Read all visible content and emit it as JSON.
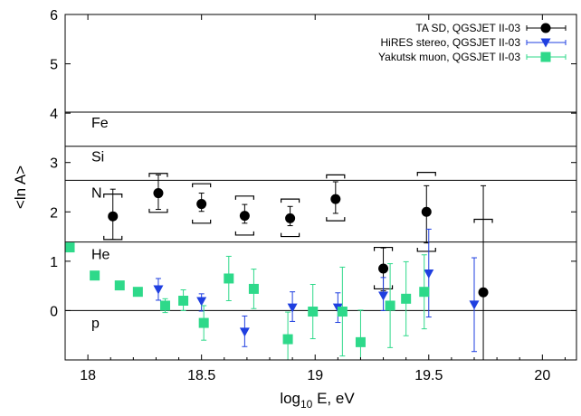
{
  "chart_data": {
    "type": "scatter",
    "xlabel_main": "log",
    "xlabel_sub": "10",
    "xlabel_rest": " E, eV",
    "ylabel": "<ln A>",
    "xlim": [
      17.9,
      20.15
    ],
    "ylim": [
      -1.0,
      6.0
    ],
    "xticks": [
      18,
      18.5,
      19,
      19.5,
      20
    ],
    "xtick_labels": [
      "18",
      "18.5",
      "19",
      "19.5",
      "20"
    ],
    "yticks": [
      0,
      1,
      2,
      3,
      4,
      5,
      6
    ],
    "ytick_labels": [
      "0",
      "1",
      "2",
      "3",
      "4",
      "5",
      "6"
    ],
    "legend_position": "top-right",
    "reference_lines": [
      {
        "label": "Fe",
        "value": 4.02
      },
      {
        "label": "Si",
        "value": 3.33
      },
      {
        "label": "N",
        "value": 2.64
      },
      {
        "label": "He",
        "value": 1.39
      },
      {
        "label": "p",
        "value": 0.0
      }
    ],
    "series": [
      {
        "name": "TA SD, QGSJET II-03",
        "marker": "circle",
        "color": "#000000",
        "points": [
          {
            "x": 18.11,
            "y": 1.91,
            "err_lo": 0.47,
            "err_hi": 0.55,
            "sys_lo": 1.44,
            "sys_hi": 2.36
          },
          {
            "x": 18.31,
            "y": 2.38,
            "err_lo": 0.33,
            "err_hi": 0.37,
            "sys_lo": 1.99,
            "sys_hi": 2.78
          },
          {
            "x": 18.5,
            "y": 2.16,
            "err_lo": 0.15,
            "err_hi": 0.22,
            "sys_lo": 1.77,
            "sys_hi": 2.57
          },
          {
            "x": 18.69,
            "y": 1.92,
            "err_lo": 0.15,
            "err_hi": 0.23,
            "sys_lo": 1.53,
            "sys_hi": 2.32
          },
          {
            "x": 18.89,
            "y": 1.87,
            "err_lo": 0.15,
            "err_hi": 0.24,
            "sys_lo": 1.5,
            "sys_hi": 2.26
          },
          {
            "x": 19.09,
            "y": 2.26,
            "err_lo": 0.29,
            "err_hi": 0.35,
            "sys_lo": 1.82,
            "sys_hi": 2.75
          },
          {
            "x": 19.3,
            "y": 0.85,
            "err_lo": 0.45,
            "err_hi": 0.42,
            "sys_lo": 0.44,
            "sys_hi": 1.28
          },
          {
            "x": 19.49,
            "y": 2.0,
            "err_lo": 0.63,
            "err_hi": 0.53,
            "sys_lo": 1.2,
            "sys_hi": 2.8
          },
          {
            "x": 19.74,
            "y": 0.37,
            "err_lo": 1.37,
            "err_hi": 2.16,
            "sys_lo": null,
            "sys_hi": 1.85
          }
        ]
      },
      {
        "name": "HiRES stereo, QGSJET II-03",
        "marker": "triangle-down",
        "color": "#1f3fe0",
        "points": [
          {
            "x": 18.31,
            "y": 0.43,
            "err_lo": 0.22,
            "err_hi": 0.22
          },
          {
            "x": 18.5,
            "y": 0.19,
            "err_lo": 0.2,
            "err_hi": 0.15
          },
          {
            "x": 18.69,
            "y": -0.43,
            "err_lo": 0.3,
            "err_hi": 0.32
          },
          {
            "x": 18.9,
            "y": 0.06,
            "err_lo": 0.28,
            "err_hi": 0.32
          },
          {
            "x": 19.1,
            "y": 0.06,
            "err_lo": 0.3,
            "err_hi": 0.3
          },
          {
            "x": 19.3,
            "y": 0.3,
            "err_lo": 0.3,
            "err_hi": 0.37
          },
          {
            "x": 19.5,
            "y": 0.75,
            "err_lo": 0.88,
            "err_hi": 0.9
          },
          {
            "x": 19.7,
            "y": 0.12,
            "err_lo": 0.95,
            "err_hi": 0.95
          }
        ]
      },
      {
        "name": "Yakutsk muon, QGSJET II-03",
        "marker": "square",
        "color": "#2ed98a",
        "points": [
          {
            "x": 17.92,
            "y": 1.28,
            "err_lo": 0.05,
            "err_hi": 0.05
          },
          {
            "x": 18.03,
            "y": 0.71,
            "err_lo": 0.05,
            "err_hi": 0.05
          },
          {
            "x": 18.14,
            "y": 0.51,
            "err_lo": 0.05,
            "err_hi": 0.05
          },
          {
            "x": 18.22,
            "y": 0.38,
            "err_lo": 0.06,
            "err_hi": 0.06
          },
          {
            "x": 18.34,
            "y": 0.1,
            "err_lo": 0.14,
            "err_hi": 0.14
          },
          {
            "x": 18.42,
            "y": 0.2,
            "err_lo": 0.2,
            "err_hi": 0.22
          },
          {
            "x": 18.51,
            "y": -0.25,
            "err_lo": 0.35,
            "err_hi": 0.35
          },
          {
            "x": 18.62,
            "y": 0.65,
            "err_lo": 0.45,
            "err_hi": 0.45
          },
          {
            "x": 18.73,
            "y": 0.44,
            "err_lo": 0.4,
            "err_hi": 0.4
          },
          {
            "x": 18.88,
            "y": -0.58,
            "err_lo": 0.55,
            "err_hi": 0.55
          },
          {
            "x": 18.99,
            "y": -0.02,
            "err_lo": 0.55,
            "err_hi": 0.55
          },
          {
            "x": 19.12,
            "y": -0.02,
            "err_lo": 0.9,
            "err_hi": 0.9
          },
          {
            "x": 19.2,
            "y": -0.64,
            "err_lo": 0.65,
            "err_hi": 0.65
          },
          {
            "x": 19.33,
            "y": 0.1,
            "err_lo": 0.85,
            "err_hi": 0.85
          },
          {
            "x": 19.4,
            "y": 0.24,
            "err_lo": 0.75,
            "err_hi": 0.75
          },
          {
            "x": 19.48,
            "y": 0.38,
            "err_lo": 0.75,
            "err_hi": 0.75
          }
        ]
      }
    ]
  }
}
